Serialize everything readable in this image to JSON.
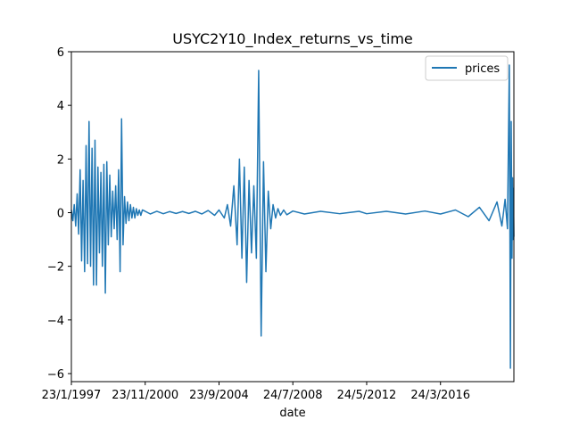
{
  "chart_data": {
    "type": "line",
    "title": "USYC2Y10_Index_returns_vs_time",
    "xlabel": "date",
    "ylabel": "",
    "x_tick_labels": [
      "23/1/1997",
      "23/11/2000",
      "23/9/2004",
      "24/7/2008",
      "24/5/2012",
      "24/3/2016"
    ],
    "x_ticks": [
      "1997-01-23",
      "2000-11-23",
      "2004-09-23",
      "2008-07-24",
      "2012-05-24",
      "2016-03-24"
    ],
    "xlim": [
      "1997-01-23",
      "2020-01-15"
    ],
    "y_ticks": [
      -6,
      -4,
      -2,
      0,
      2,
      4,
      6
    ],
    "ylim": [
      -6.3,
      6.0
    ],
    "grid": false,
    "legend": {
      "position": "top-right"
    },
    "series": [
      {
        "name": "prices",
        "color": "#1f77b4",
        "x": [
          "1997-01-23",
          "1997-02-20",
          "1997-03-18",
          "1997-04-15",
          "1997-05-13",
          "1997-06-10",
          "1997-07-08",
          "1997-08-05",
          "1997-09-02",
          "1997-10-01",
          "1997-10-29",
          "1997-11-26",
          "1997-12-24",
          "1998-01-22",
          "1998-02-19",
          "1998-03-19",
          "1998-04-16",
          "1998-05-14",
          "1998-06-11",
          "1998-07-09",
          "1998-08-06",
          "1998-09-03",
          "1998-10-01",
          "1998-10-29",
          "1998-11-26",
          "1998-12-24",
          "1999-01-21",
          "1999-02-18",
          "1999-03-18",
          "1999-04-15",
          "1999-05-13",
          "1999-06-10",
          "1999-07-08",
          "1999-08-05",
          "1999-09-02",
          "1999-09-30",
          "1999-10-28",
          "1999-11-25",
          "1999-12-23",
          "2000-01-20",
          "2000-02-17",
          "2000-03-16",
          "2000-04-13",
          "2000-05-11",
          "2000-06-08",
          "2000-07-06",
          "2000-08-03",
          "2000-09-01",
          "2000-10-01",
          "2000-11-23",
          "2001-03-01",
          "2001-07-01",
          "2001-11-01",
          "2002-03-01",
          "2002-07-01",
          "2002-11-01",
          "2003-03-01",
          "2003-07-01",
          "2003-11-01",
          "2004-03-01",
          "2004-07-01",
          "2004-09-23",
          "2005-01-01",
          "2005-03-01",
          "2005-05-01",
          "2005-07-01",
          "2005-09-01",
          "2005-10-15",
          "2005-12-01",
          "2006-01-15",
          "2006-03-01",
          "2006-04-15",
          "2006-06-01",
          "2006-07-15",
          "2006-09-01",
          "2006-10-15",
          "2006-12-01",
          "2007-01-15",
          "2007-03-01",
          "2007-04-15",
          "2007-06-01",
          "2007-07-15",
          "2007-09-01",
          "2007-10-15",
          "2007-12-01",
          "2008-02-01",
          "2008-04-01",
          "2008-07-24",
          "2009-03-01",
          "2010-01-01",
          "2011-01-01",
          "2012-01-01",
          "2012-05-24",
          "2013-06-01",
          "2014-06-01",
          "2015-06-01",
          "2016-03-24",
          "2017-01-01",
          "2017-09-01",
          "2018-04-01",
          "2018-10-01",
          "2019-03-01",
          "2019-06-01",
          "2019-08-01",
          "2019-09-15",
          "2019-10-20",
          "2019-11-10",
          "2019-11-25",
          "2019-12-10",
          "2019-12-20",
          "2019-12-28",
          "2020-01-05",
          "2020-01-15"
        ],
        "y": [
          0.1,
          -0.3,
          0.3,
          -0.5,
          0.7,
          -0.8,
          1.6,
          -1.8,
          1.2,
          -2.2,
          2.5,
          -1.9,
          3.4,
          -2.0,
          2.4,
          -2.7,
          2.7,
          -2.7,
          1.7,
          -1.5,
          1.5,
          -2.0,
          1.8,
          -3.0,
          1.9,
          -1.2,
          1.4,
          -0.9,
          0.8,
          -0.6,
          1.0,
          -1.0,
          1.6,
          -2.2,
          3.5,
          -1.2,
          0.6,
          -0.4,
          0.4,
          -0.3,
          0.3,
          -0.2,
          0.2,
          -0.2,
          0.15,
          -0.1,
          0.1,
          -0.1,
          0.1,
          0.05,
          -0.05,
          0.05,
          -0.04,
          0.04,
          -0.03,
          0.04,
          -0.03,
          0.05,
          -0.05,
          0.08,
          -0.1,
          0.1,
          -0.2,
          0.3,
          -0.5,
          1.0,
          -1.2,
          2.0,
          -1.7,
          1.7,
          -2.6,
          1.2,
          -1.5,
          1.0,
          -1.7,
          5.3,
          -4.6,
          1.9,
          -2.2,
          0.8,
          -0.6,
          0.3,
          -0.2,
          0.15,
          -0.1,
          0.1,
          -0.08,
          0.06,
          -0.05,
          0.05,
          -0.04,
          0.05,
          -0.04,
          0.05,
          -0.05,
          0.06,
          -0.05,
          0.1,
          -0.15,
          0.2,
          -0.3,
          0.4,
          -0.5,
          0.5,
          -0.6,
          5.5,
          -5.8,
          3.4,
          -1.7,
          1.3,
          -1.0,
          0.9,
          -0.9
        ]
      }
    ]
  }
}
